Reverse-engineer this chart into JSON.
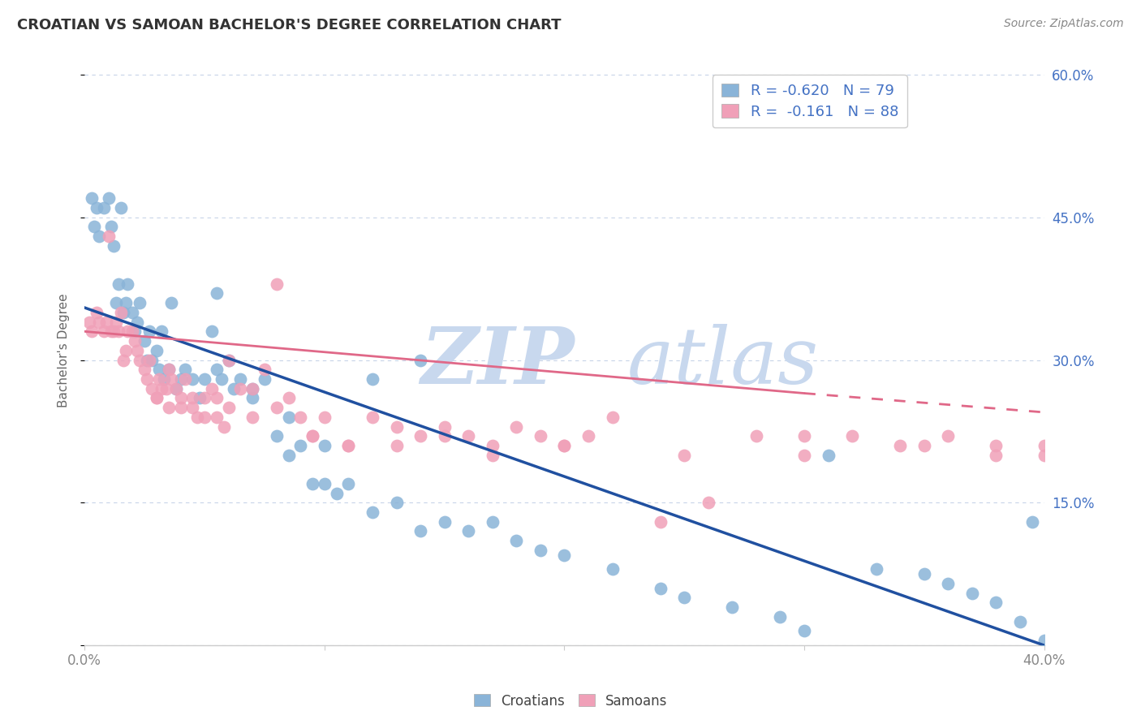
{
  "title": "CROATIAN VS SAMOAN BACHELOR'S DEGREE CORRELATION CHART",
  "source": "Source: ZipAtlas.com",
  "ylabel": "Bachelor's Degree",
  "legend_croatians": "Croatians",
  "legend_samoans": "Samoans",
  "legend_r_croatian": "-0.620",
  "legend_n_croatian": "79",
  "legend_r_samoan": "-0.161",
  "legend_n_samoan": "88",
  "croatian_color": "#8ab4d8",
  "samoan_color": "#f0a0b8",
  "trend_croatian_color": "#2050a0",
  "trend_samoan_color": "#e06888",
  "watermark_zip_color": "#c8d8ee",
  "watermark_atlas_color": "#c8d8ee",
  "background_color": "#ffffff",
  "grid_color": "#c8d4e8",
  "right_label_color": "#4472c4",
  "title_color": "#333333",
  "source_color": "#888888",
  "xlabel_color": "#888888",
  "ylabel_color": "#666666",
  "xlim": [
    0,
    40
  ],
  "ylim": [
    0,
    62
  ],
  "croatian_x": [
    0.3,
    0.4,
    0.5,
    0.6,
    0.8,
    1.0,
    1.1,
    1.2,
    1.3,
    1.4,
    1.5,
    1.6,
    1.7,
    1.8,
    2.0,
    2.1,
    2.2,
    2.3,
    2.5,
    2.6,
    2.7,
    2.8,
    3.0,
    3.1,
    3.2,
    3.3,
    3.5,
    3.6,
    3.8,
    4.0,
    4.2,
    4.5,
    4.8,
    5.0,
    5.3,
    5.5,
    5.7,
    6.0,
    6.2,
    6.5,
    7.0,
    7.5,
    8.0,
    8.5,
    9.0,
    9.5,
    10.0,
    10.5,
    11.0,
    12.0,
    13.0,
    14.0,
    15.0,
    16.0,
    17.0,
    18.0,
    19.0,
    20.0,
    22.0,
    24.0,
    25.0,
    27.0,
    29.0,
    30.0,
    31.0,
    33.0,
    35.0,
    36.0,
    37.0,
    38.0,
    39.0,
    39.5,
    40.0,
    5.5,
    7.0,
    8.5,
    10.0,
    12.0,
    14.0
  ],
  "croatian_y": [
    47.0,
    44.0,
    46.0,
    43.0,
    46.0,
    47.0,
    44.0,
    42.0,
    36.0,
    38.0,
    46.0,
    35.0,
    36.0,
    38.0,
    35.0,
    33.0,
    34.0,
    36.0,
    32.0,
    30.0,
    33.0,
    30.0,
    31.0,
    29.0,
    33.0,
    28.0,
    29.0,
    36.0,
    27.0,
    28.0,
    29.0,
    28.0,
    26.0,
    28.0,
    33.0,
    29.0,
    28.0,
    30.0,
    27.0,
    28.0,
    27.0,
    28.0,
    22.0,
    24.0,
    21.0,
    17.0,
    17.0,
    16.0,
    17.0,
    14.0,
    15.0,
    12.0,
    13.0,
    12.0,
    13.0,
    11.0,
    10.0,
    9.5,
    8.0,
    6.0,
    5.0,
    4.0,
    3.0,
    1.5,
    20.0,
    8.0,
    7.5,
    6.5,
    5.5,
    4.5,
    2.5,
    13.0,
    0.5,
    37.0,
    26.0,
    20.0,
    21.0,
    28.0,
    30.0
  ],
  "samoan_x": [
    0.2,
    0.3,
    0.5,
    0.6,
    0.8,
    0.9,
    1.0,
    1.1,
    1.2,
    1.3,
    1.4,
    1.5,
    1.6,
    1.7,
    1.8,
    2.0,
    2.1,
    2.2,
    2.3,
    2.5,
    2.6,
    2.7,
    2.8,
    3.0,
    3.1,
    3.2,
    3.4,
    3.5,
    3.6,
    3.8,
    4.0,
    4.2,
    4.5,
    4.7,
    5.0,
    5.3,
    5.5,
    5.8,
    6.0,
    6.5,
    7.0,
    7.5,
    8.0,
    8.5,
    9.0,
    9.5,
    10.0,
    11.0,
    12.0,
    13.0,
    14.0,
    15.0,
    16.0,
    17.0,
    18.0,
    19.0,
    20.0,
    21.0,
    22.0,
    24.0,
    26.0,
    28.0,
    30.0,
    32.0,
    34.0,
    36.0,
    38.0,
    40.0,
    3.0,
    3.5,
    4.0,
    4.5,
    5.0,
    5.5,
    6.0,
    7.0,
    8.0,
    9.5,
    11.0,
    13.0,
    15.0,
    17.0,
    20.0,
    25.0,
    30.0,
    35.0,
    38.0,
    40.0
  ],
  "samoan_y": [
    34.0,
    33.0,
    35.0,
    34.0,
    33.0,
    34.0,
    43.0,
    33.0,
    33.0,
    34.0,
    33.0,
    35.0,
    30.0,
    31.0,
    33.0,
    33.0,
    32.0,
    31.0,
    30.0,
    29.0,
    28.0,
    30.0,
    27.0,
    26.0,
    28.0,
    27.0,
    27.0,
    29.0,
    28.0,
    27.0,
    25.0,
    28.0,
    26.0,
    24.0,
    26.0,
    27.0,
    24.0,
    23.0,
    30.0,
    27.0,
    27.0,
    29.0,
    38.0,
    26.0,
    24.0,
    22.0,
    24.0,
    21.0,
    24.0,
    23.0,
    22.0,
    23.0,
    22.0,
    21.0,
    23.0,
    22.0,
    21.0,
    22.0,
    24.0,
    13.0,
    15.0,
    22.0,
    22.0,
    22.0,
    21.0,
    22.0,
    21.0,
    21.0,
    26.0,
    25.0,
    26.0,
    25.0,
    24.0,
    26.0,
    25.0,
    24.0,
    25.0,
    22.0,
    21.0,
    21.0,
    22.0,
    20.0,
    21.0,
    20.0,
    20.0,
    21.0,
    20.0,
    20.0
  ],
  "trend_cr_x0": 0,
  "trend_cr_y0": 35.5,
  "trend_cr_x1": 40,
  "trend_cr_y1": 0.0,
  "trend_sa_solid_x0": 0,
  "trend_sa_solid_y0": 33.0,
  "trend_sa_solid_x1": 30,
  "trend_sa_solid_y1": 26.5,
  "trend_sa_dash_x0": 30,
  "trend_sa_dash_y0": 26.5,
  "trend_sa_dash_x1": 40,
  "trend_sa_dash_y1": 24.5
}
